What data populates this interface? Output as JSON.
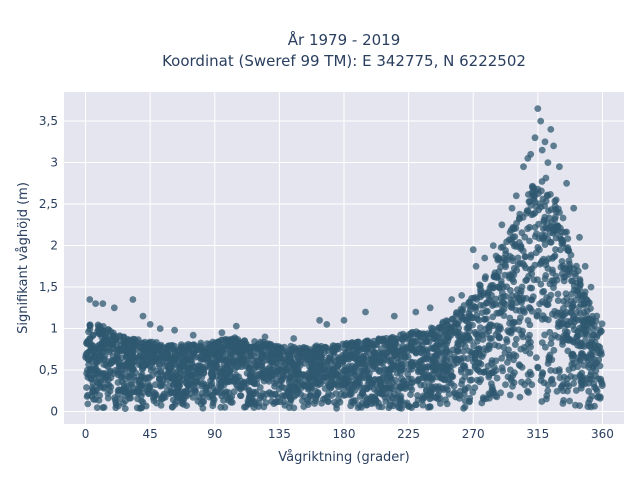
{
  "chart_data": {
    "type": "scatter",
    "title_lines": [
      "År 1979 - 2019",
      "Koordinat (Sweref 99 TM): E 342775, N 6222502"
    ],
    "xlabel": "Vågriktning (grader)",
    "ylabel": "Signifikant våghöjd (m)",
    "xlim": [
      -15,
      375
    ],
    "ylim": [
      -0.15,
      3.85
    ],
    "x_ticks": [
      0,
      45,
      90,
      135,
      180,
      225,
      270,
      315,
      360
    ],
    "x_tick_labels": [
      "0",
      "45",
      "90",
      "135",
      "180",
      "225",
      "270",
      "315",
      "360"
    ],
    "y_ticks": [
      0,
      0.5,
      1,
      1.5,
      2,
      2.5,
      3,
      3.5
    ],
    "y_tick_labels": [
      "0",
      "0,5",
      "1",
      "1,5",
      "2",
      "2,5",
      "3",
      "3,5"
    ],
    "grid": true,
    "marker_color": "#2f5870",
    "plot_background": "#e5e5ef",
    "upper_envelope": {
      "x": [
        0,
        10,
        20,
        30,
        45,
        60,
        75,
        90,
        105,
        120,
        135,
        150,
        165,
        180,
        195,
        210,
        225,
        240,
        255,
        265,
        275,
        285,
        295,
        305,
        312,
        318,
        322,
        328,
        335,
        340,
        345,
        350,
        355,
        360
      ],
      "y": [
        1.1,
        1.05,
        0.95,
        0.9,
        0.85,
        0.8,
        0.82,
        0.85,
        0.9,
        0.85,
        0.8,
        0.78,
        0.8,
        0.82,
        0.85,
        0.9,
        0.95,
        1.0,
        1.15,
        1.3,
        1.55,
        1.85,
        2.15,
        2.5,
        2.75,
        2.85,
        2.8,
        2.55,
        2.25,
        1.9,
        1.6,
        1.35,
        1.2,
        1.1
      ]
    },
    "outliers": {
      "x": [
        3,
        7,
        12,
        20,
        33,
        40,
        45,
        52,
        62,
        75,
        95,
        105,
        125,
        145,
        163,
        168,
        180,
        195,
        215,
        230,
        240,
        255,
        262,
        270,
        272,
        278,
        284,
        290,
        297,
        300,
        305,
        308,
        310,
        313,
        315,
        317,
        318,
        320,
        322,
        324,
        326,
        330,
        335,
        340,
        344,
        348,
        352
      ],
      "y": [
        1.35,
        1.3,
        1.3,
        1.25,
        1.35,
        1.15,
        1.05,
        1.0,
        0.98,
        0.92,
        0.95,
        1.03,
        0.9,
        0.88,
        1.1,
        1.05,
        1.1,
        1.2,
        1.15,
        1.2,
        1.25,
        1.35,
        1.4,
        1.95,
        1.75,
        1.85,
        2.0,
        2.25,
        2.45,
        2.6,
        2.95,
        3.05,
        3.1,
        3.3,
        3.65,
        3.5,
        3.15,
        3.25,
        3.0,
        3.4,
        3.2,
        2.95,
        2.75,
        2.45,
        2.1,
        1.75,
        1.5
      ]
    }
  }
}
